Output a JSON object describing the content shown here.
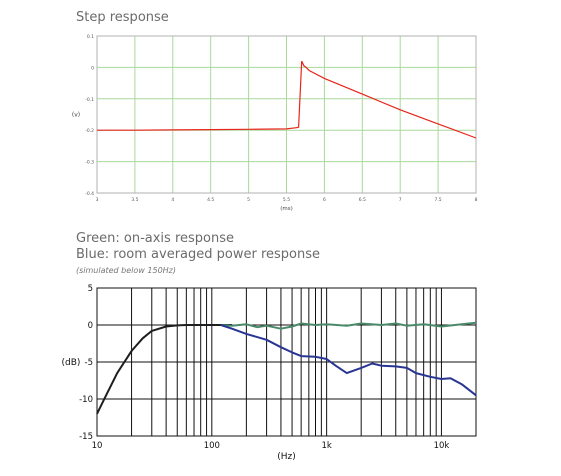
{
  "step": {
    "title": "Step response"
  },
  "freq": {
    "title_line1": "Green: on-axis response",
    "title_line2": "Blue: room averaged power response",
    "note": "(simulated below 150Hz)"
  },
  "chart_data": [
    {
      "type": "line",
      "title": "Step response",
      "xlabel": "(ms)",
      "ylabel": "(v)",
      "xlim": [
        3,
        8
      ],
      "ylim": [
        -0.4,
        0.1
      ],
      "x_ticks": [
        "3",
        "3.5",
        "4",
        "4.5",
        "5",
        "5.5",
        "6",
        "6.5",
        "7",
        "7.5",
        "8"
      ],
      "y_ticks": [
        "0.1",
        "0",
        "-0.1",
        "-0.2",
        "-0.3",
        "-0.4"
      ],
      "grid": true,
      "series": [
        {
          "color": "#e8251b",
          "points": [
            [
              3.0,
              -0.2
            ],
            [
              3.5,
              -0.2
            ],
            [
              4.0,
              -0.199
            ],
            [
              4.5,
              -0.198
            ],
            [
              5.0,
              -0.197
            ],
            [
              5.5,
              -0.196
            ],
            [
              5.63,
              -0.192
            ],
            [
              5.66,
              -0.19
            ],
            [
              5.7,
              0.02
            ],
            [
              5.73,
              0.005
            ],
            [
              5.76,
              0.0
            ],
            [
              5.8,
              -0.01
            ],
            [
              6.0,
              -0.035
            ],
            [
              6.5,
              -0.085
            ],
            [
              7.0,
              -0.135
            ],
            [
              7.5,
              -0.18
            ],
            [
              8.0,
              -0.225
            ]
          ]
        }
      ]
    },
    {
      "type": "line",
      "xlabel": "(Hz)",
      "ylabel": "(dB)",
      "x_scale": "log",
      "xlim": [
        10,
        20000
      ],
      "ylim": [
        -15,
        5
      ],
      "x_ticks": [
        "10",
        "100",
        "1k",
        "10k"
      ],
      "y_ticks": [
        "5",
        "0",
        "-5",
        "-10",
        "-15"
      ],
      "grid": true,
      "series": [
        {
          "color": "#1e1e1e",
          "points": [
            [
              10,
              -12
            ],
            [
              12,
              -9.5
            ],
            [
              15,
              -6.5
            ],
            [
              20,
              -3.5
            ],
            [
              25,
              -1.8
            ],
            [
              30,
              -0.8
            ],
            [
              40,
              -0.2
            ],
            [
              50,
              -0.05
            ],
            [
              60,
              0
            ],
            [
              150,
              0
            ]
          ]
        },
        {
          "color": "#4a8a6a",
          "points": [
            [
              120,
              0
            ],
            [
              150,
              -0.1
            ],
            [
              200,
              0.1
            ],
            [
              250,
              -0.3
            ],
            [
              300,
              -0.1
            ],
            [
              400,
              -0.5
            ],
            [
              500,
              -0.2
            ],
            [
              600,
              0.2
            ],
            [
              800,
              0
            ],
            [
              1000,
              0.1
            ],
            [
              1500,
              -0.1
            ],
            [
              2000,
              0.2
            ],
            [
              3000,
              0
            ],
            [
              4000,
              0.2
            ],
            [
              5000,
              -0.1
            ],
            [
              7000,
              0.1
            ],
            [
              10000,
              -0.2
            ],
            [
              15000,
              0.1
            ],
            [
              20000,
              0.3
            ]
          ]
        },
        {
          "color": "#283593",
          "points": [
            [
              120,
              0
            ],
            [
              150,
              -0.5
            ],
            [
              200,
              -1.2
            ],
            [
              300,
              -2
            ],
            [
              400,
              -3
            ],
            [
              500,
              -3.7
            ],
            [
              600,
              -4.2
            ],
            [
              800,
              -4.3
            ],
            [
              1000,
              -4.6
            ],
            [
              1200,
              -5.5
            ],
            [
              1500,
              -6.5
            ],
            [
              2000,
              -5.8
            ],
            [
              2500,
              -5.2
            ],
            [
              3000,
              -5.5
            ],
            [
              4000,
              -5.6
            ],
            [
              5000,
              -5.8
            ],
            [
              6000,
              -6.5
            ],
            [
              8000,
              -7
            ],
            [
              10000,
              -7.3
            ],
            [
              12000,
              -7.2
            ],
            [
              15000,
              -8
            ],
            [
              20000,
              -9.5
            ]
          ]
        }
      ]
    }
  ]
}
